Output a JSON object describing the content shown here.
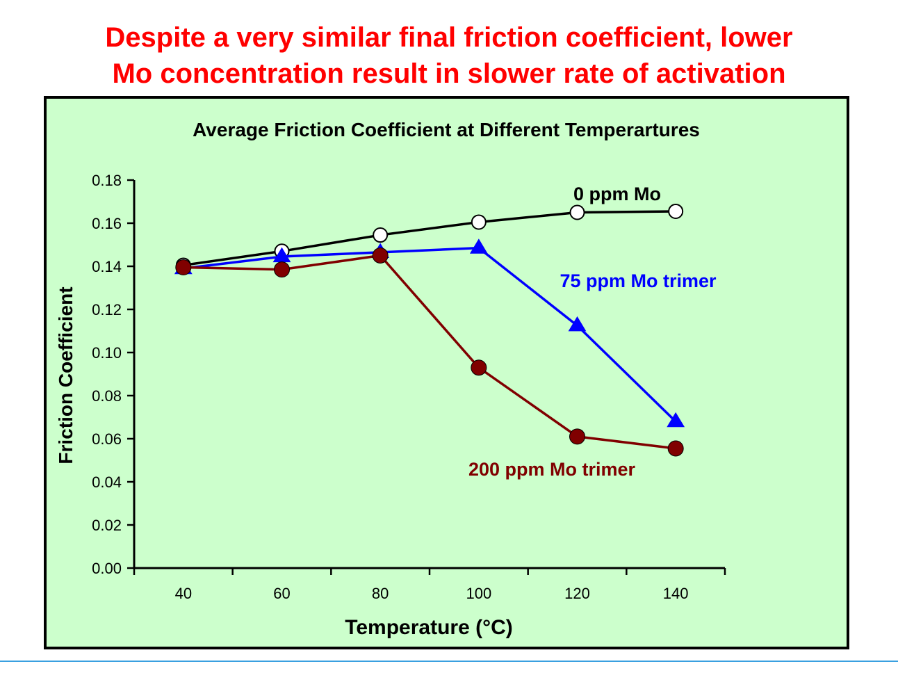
{
  "headline": {
    "line1": "Despite a very similar final friction coefficient, lower",
    "line2": "Mo concentration result in slower rate of activation"
  },
  "colors": {
    "headline": "#ff0000",
    "plot_background": "#ccffcc",
    "series_0ppm": "#000000",
    "series_75ppm": "#0000ff",
    "series_200ppm": "#800000",
    "bottom_rule": "#3aa0e0"
  },
  "chart_data": {
    "type": "line",
    "title": "Average Friction Coefficient at Different Temperartures",
    "xlabel": "Temperature (°C)",
    "ylabel": "Friction Coefficient",
    "x": [
      40,
      60,
      80,
      100,
      120,
      140
    ],
    "xlim": [
      30,
      150
    ],
    "ylim": [
      0,
      0.18
    ],
    "x_ticks": [
      "40",
      "60",
      "80",
      "100",
      "120",
      "140"
    ],
    "y_ticks": [
      "0.00",
      "0.02",
      "0.04",
      "0.06",
      "0.08",
      "0.10",
      "0.12",
      "0.14",
      "0.16",
      "0.18"
    ],
    "grid": false,
    "legend": "inline labels",
    "series": [
      {
        "name": "0 ppm Mo",
        "values": [
          0.1405,
          0.147,
          0.1545,
          0.1605,
          0.165,
          0.1655
        ],
        "color": "#000000",
        "marker": "circle-open"
      },
      {
        "name": "75 ppm Mo trimer",
        "values": [
          0.139,
          0.1445,
          0.1465,
          0.1485,
          0.1125,
          0.068
        ],
        "color": "#0000ff",
        "marker": "triangle"
      },
      {
        "name": "200 ppm Mo trimer",
        "values": [
          0.1395,
          0.1385,
          0.145,
          0.093,
          0.061,
          0.0555
        ],
        "color": "#800000",
        "marker": "circle-filled"
      }
    ]
  }
}
